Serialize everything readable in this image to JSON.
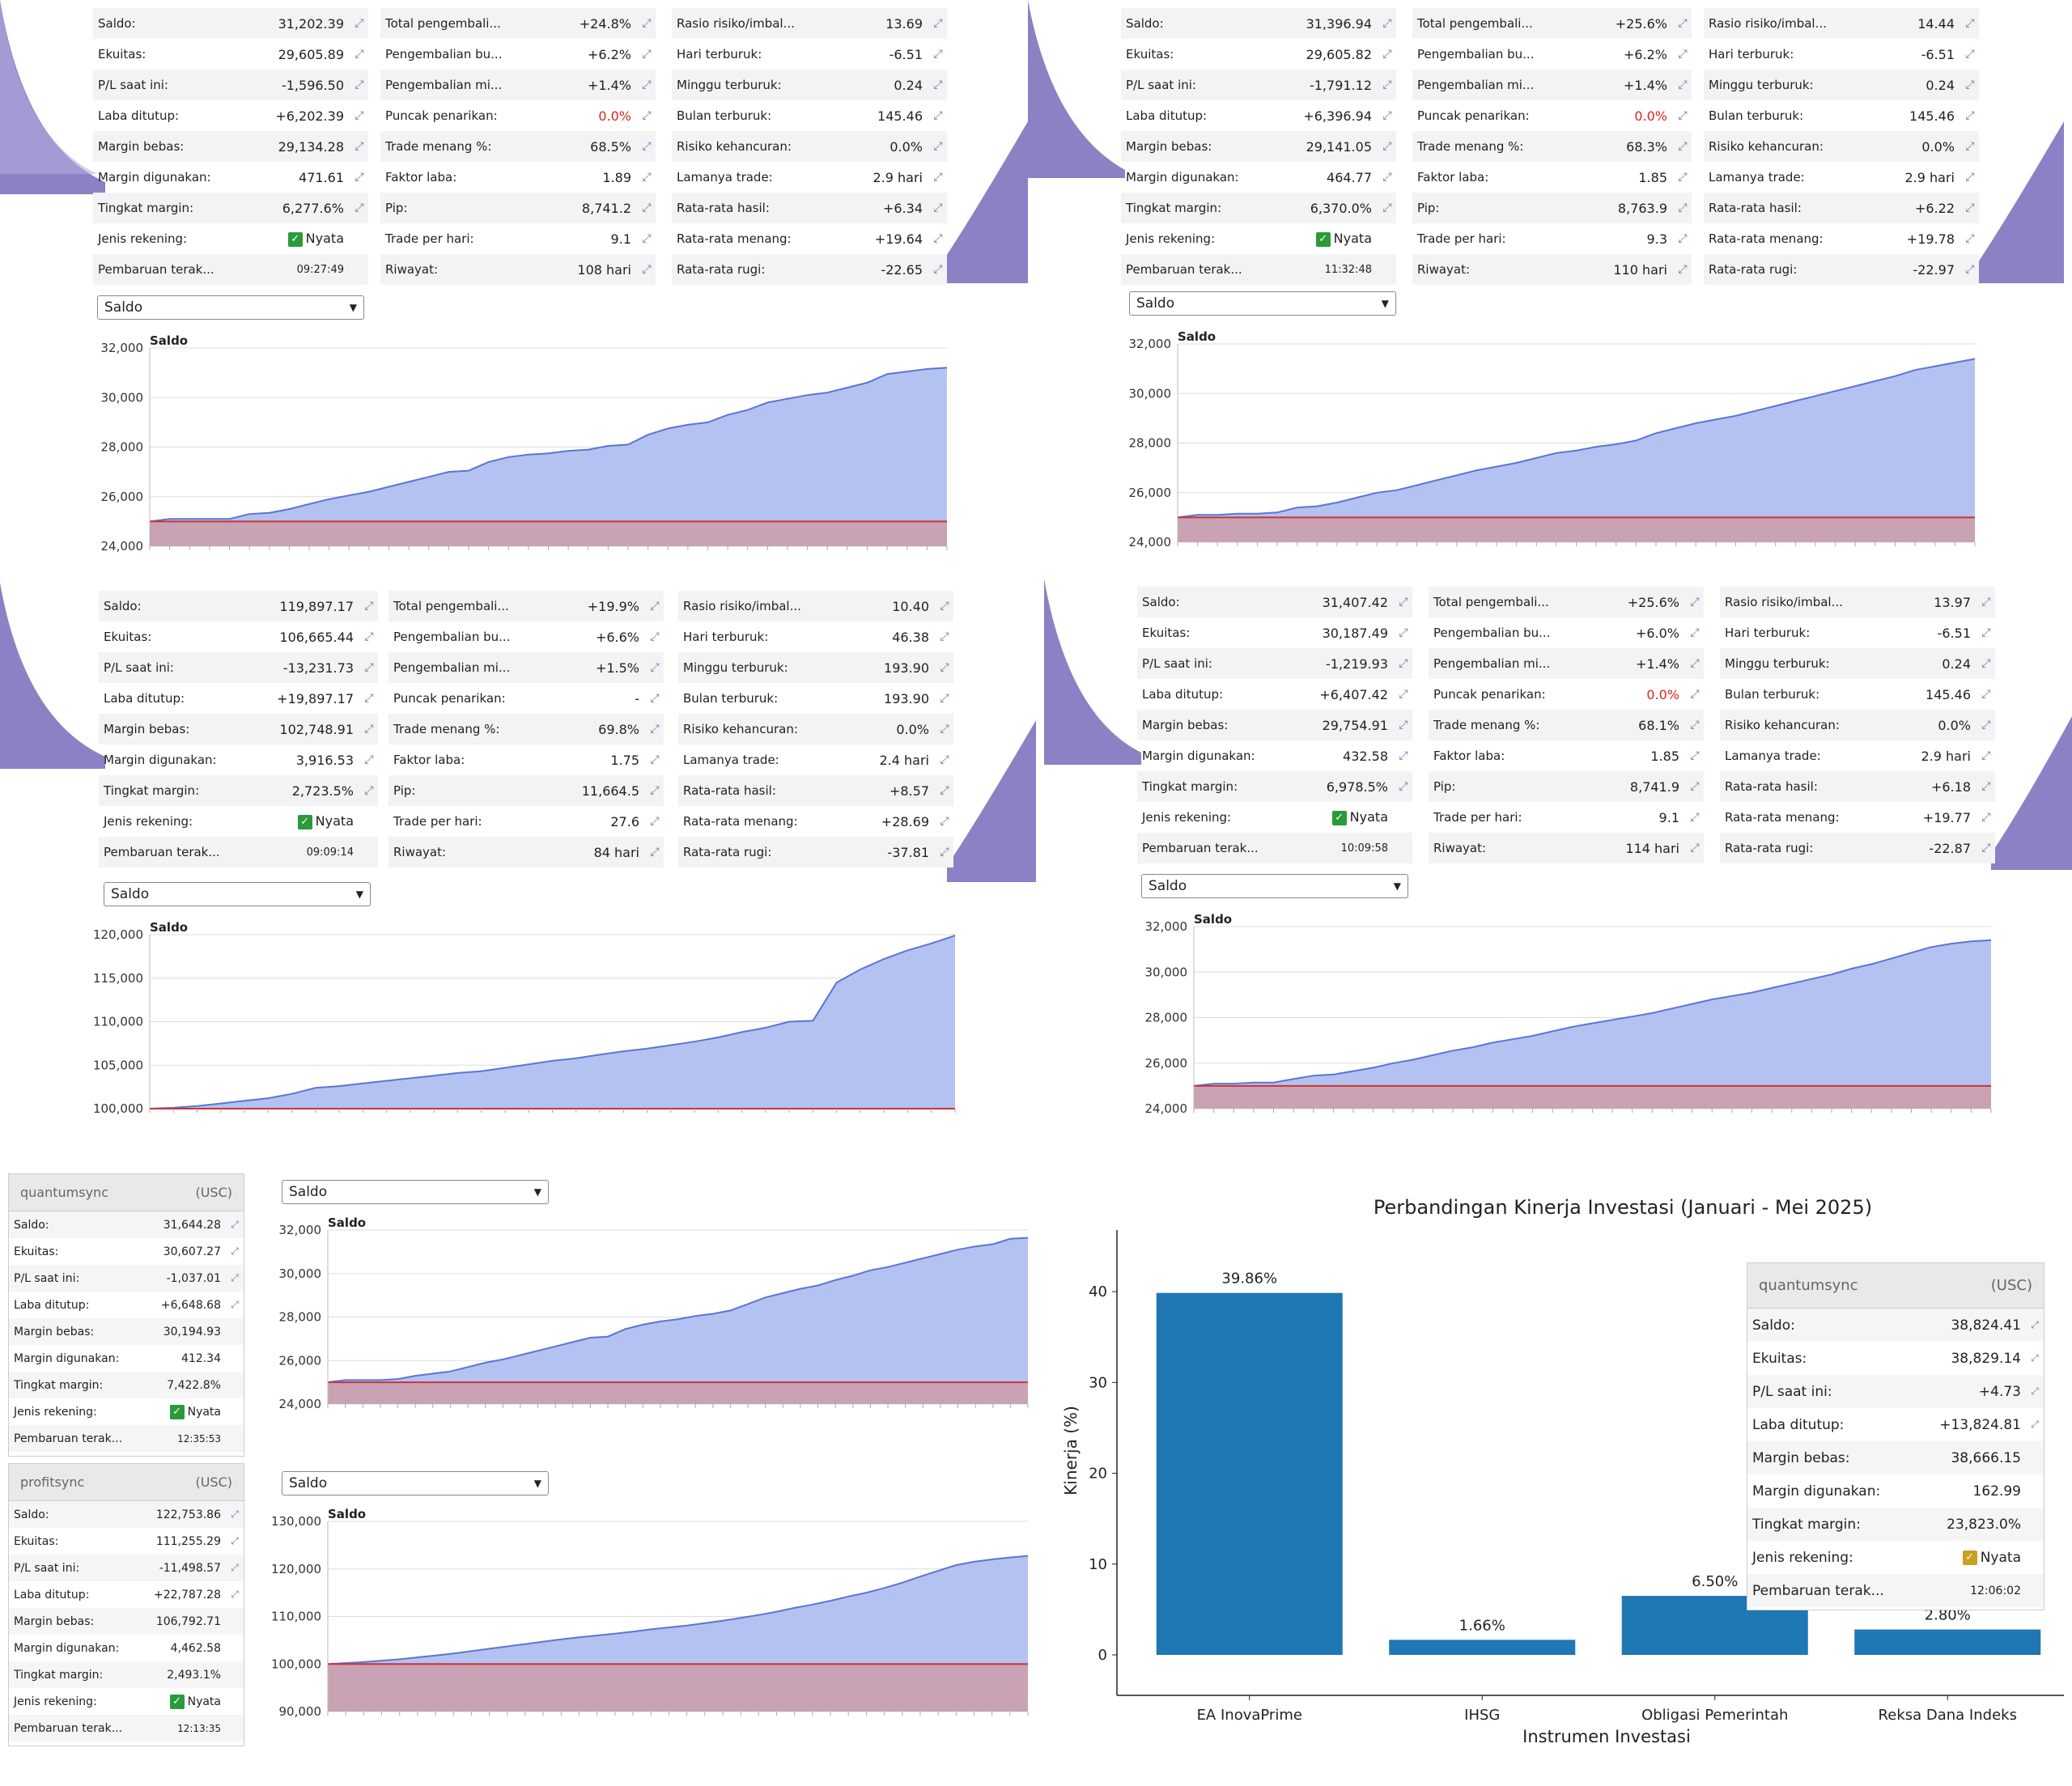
{
  "labels": {
    "balance": "Saldo:",
    "equity": "Ekuitas:",
    "pl": "P/L saat ini:",
    "closed": "Laba ditutup:",
    "free_margin": "Margin bebas:",
    "used_margin": "Margin digunakan:",
    "margin_level": "Tingkat margin:",
    "account_type": "Jenis rekening:",
    "updated": "Pembaruan terak...",
    "total_return": "Total pengembali...",
    "monthly_return": "Pengembalian bu...",
    "weekly_return": "Pengembalian mi...",
    "peak_drawdown": "Puncak penarikan:",
    "win_pct": "Trade menang %:",
    "profit_factor": "Faktor laba:",
    "pips": "Pip:",
    "trades_per_day": "Trade per hari:",
    "history": "Riwayat:",
    "risk_ratio": "Rasio risiko/imbal...",
    "worst_day": "Hari terburuk:",
    "worst_week": "Minggu terburuk:",
    "worst_month": "Bulan terburuk:",
    "ruin_risk": "Risiko kehancuran:",
    "trade_length": "Lamanya trade:",
    "avg_result": "Rata-rata hasil:",
    "avg_win": "Rata-rata menang:",
    "avg_loss": "Rata-rata rugi:",
    "real": "Nyata",
    "select": "Saldo",
    "chart_title": "Saldo"
  },
  "panels": [
    {
      "col1": [
        "31,202.39",
        "29,605.89",
        "-1,596.50",
        "+6,202.39",
        "29,134.28",
        "471.61",
        "6,277.6%",
        "Nyata",
        "09:27:49"
      ],
      "col2": [
        "+24.8%",
        "+6.2%",
        "+1.4%",
        "0.0%",
        "68.5%",
        "1.89",
        "8,741.2",
        "9.1",
        "108 hari"
      ],
      "col3": [
        "13.69",
        "-6.51",
        "0.24",
        "145.46",
        "0.0%",
        "2.9 hari",
        "+6.34",
        "+19.64",
        "-22.65"
      ]
    },
    {
      "col1": [
        "31,396.94",
        "29,605.82",
        "-1,791.12",
        "+6,396.94",
        "29,141.05",
        "464.77",
        "6,370.0%",
        "Nyata",
        "11:32:48"
      ],
      "col2": [
        "+25.6%",
        "+6.2%",
        "+1.4%",
        "0.0%",
        "68.3%",
        "1.85",
        "8,763.9",
        "9.3",
        "110 hari"
      ],
      "col3": [
        "14.44",
        "-6.51",
        "0.24",
        "145.46",
        "0.0%",
        "2.9 hari",
        "+6.22",
        "+19.78",
        "-22.97"
      ]
    },
    {
      "col1": [
        "119,897.17",
        "106,665.44",
        "-13,231.73",
        "+19,897.17",
        "102,748.91",
        "3,916.53",
        "2,723.5%",
        "Nyata",
        "09:09:14"
      ],
      "col2": [
        "+19.9%",
        "+6.6%",
        "+1.5%",
        "-",
        "69.8%",
        "1.75",
        "11,664.5",
        "27.6",
        "84 hari"
      ],
      "col3": [
        "10.40",
        "46.38",
        "193.90",
        "193.90",
        "0.0%",
        "2.4 hari",
        "+8.57",
        "+28.69",
        "-37.81"
      ]
    },
    {
      "col1": [
        "31,407.42",
        "30,187.49",
        "-1,219.93",
        "+6,407.42",
        "29,754.91",
        "432.58",
        "6,978.5%",
        "Nyata",
        "10:09:58"
      ],
      "col2": [
        "+25.6%",
        "+6.0%",
        "+1.4%",
        "0.0%",
        "68.1%",
        "1.85",
        "8,741.9",
        "9.1",
        "114 hari"
      ],
      "col3": [
        "13.97",
        "-6.51",
        "0.24",
        "145.46",
        "0.0%",
        "2.9 hari",
        "+6.18",
        "+19.77",
        "-22.87"
      ]
    }
  ],
  "cards": [
    {
      "name": "quantumsync",
      "currency": "(USC)",
      "values": [
        "31,644.28",
        "30,607.27",
        "-1,037.01",
        "+6,648.68",
        "30,194.93",
        "412.34",
        "7,422.8%",
        "Nyata",
        "12:35:53"
      ]
    },
    {
      "name": "profitsync",
      "currency": "(USC)",
      "values": [
        "122,753.86",
        "111,255.29",
        "-11,498.57",
        "+22,787.28",
        "106,792.71",
        "4,462.58",
        "2,493.1%",
        "Nyata",
        "12:13:35"
      ]
    },
    {
      "name": "quantumsync",
      "currency": "(USC)",
      "values": [
        "38,824.41",
        "38,829.14",
        "+4.73",
        "+13,824.81",
        "38,666.15",
        "162.99",
        "23,823.0%",
        "Nyata",
        "12:06:02"
      ]
    }
  ],
  "colors": {
    "accent": "#7b6fb8",
    "area": "#aebff0",
    "line": "#5e7ad8",
    "red": "#c44",
    "bar": "#1f77b4"
  },
  "chart_data": [
    {
      "type": "area",
      "title": "Saldo",
      "ylim": [
        24000,
        32000
      ],
      "yticks": [
        "24,000",
        "26,000",
        "28,000",
        "30,000",
        "32,000"
      ],
      "baseline": 25000,
      "values": [
        25000,
        25100,
        25100,
        25100,
        25100,
        25300,
        25350,
        25500,
        25700,
        25900,
        26050,
        26200,
        26400,
        26600,
        26800,
        27000,
        27050,
        27400,
        27600,
        27700,
        27750,
        27850,
        27900,
        28050,
        28100,
        28500,
        28750,
        28900,
        29000,
        29300,
        29500,
        29800,
        29950,
        30100,
        30200,
        30400,
        30600,
        30950,
        31050,
        31150,
        31202
      ]
    },
    {
      "type": "area",
      "title": "Saldo",
      "ylim": [
        24000,
        32000
      ],
      "yticks": [
        "24,000",
        "26,000",
        "28,000",
        "30,000",
        "32,000"
      ],
      "baseline": 25000,
      "values": [
        25000,
        25100,
        25100,
        25150,
        25150,
        25200,
        25400,
        25450,
        25600,
        25800,
        26000,
        26100,
        26300,
        26500,
        26700,
        26900,
        27050,
        27200,
        27400,
        27600,
        27700,
        27850,
        27950,
        28100,
        28400,
        28600,
        28800,
        28950,
        29100,
        29300,
        29500,
        29700,
        29900,
        30100,
        30300,
        30500,
        30700,
        30950,
        31100,
        31250,
        31397
      ]
    },
    {
      "type": "area",
      "title": "Saldo",
      "ylim": [
        100000,
        120000
      ],
      "yticks": [
        "100,000",
        "105,000",
        "110,000",
        "115,000",
        "120,000"
      ],
      "baseline": 100000,
      "values": [
        100000,
        100100,
        100300,
        100600,
        100900,
        101200,
        101700,
        102400,
        102600,
        102900,
        103200,
        103500,
        103800,
        104100,
        104300,
        104700,
        105100,
        105500,
        105800,
        106200,
        106600,
        106900,
        107300,
        107700,
        108200,
        108800,
        109300,
        110000,
        110100,
        114500,
        116000,
        117200,
        118200,
        119000,
        119897
      ]
    },
    {
      "type": "area",
      "title": "Saldo",
      "ylim": [
        24000,
        32000
      ],
      "yticks": [
        "24,000",
        "26,000",
        "28,000",
        "30,000",
        "32,000"
      ],
      "baseline": 25000,
      "values": [
        25000,
        25100,
        25100,
        25150,
        25150,
        25300,
        25450,
        25500,
        25650,
        25800,
        26000,
        26150,
        26350,
        26550,
        26700,
        26900,
        27050,
        27200,
        27400,
        27600,
        27750,
        27900,
        28050,
        28200,
        28400,
        28600,
        28800,
        28950,
        29100,
        29300,
        29500,
        29700,
        29900,
        30150,
        30350,
        30600,
        30850,
        31100,
        31250,
        31350,
        31407
      ]
    },
    {
      "type": "area",
      "title": "Saldo",
      "ylim": [
        24000,
        32000
      ],
      "yticks": [
        "24,000",
        "26,000",
        "28,000",
        "30,000",
        "32,000"
      ],
      "baseline": 25000,
      "values": [
        25000,
        25100,
        25100,
        25100,
        25150,
        25300,
        25400,
        25500,
        25700,
        25900,
        26050,
        26250,
        26450,
        26650,
        26850,
        27050,
        27100,
        27450,
        27650,
        27800,
        27900,
        28050,
        28150,
        28300,
        28600,
        28900,
        29100,
        29300,
        29450,
        29700,
        29900,
        30150,
        30300,
        30500,
        30700,
        30900,
        31100,
        31250,
        31350,
        31600,
        31644
      ]
    },
    {
      "type": "area",
      "title": "Saldo",
      "ylim": [
        90000,
        130000
      ],
      "yticks": [
        "90,000",
        "100,000",
        "110,000",
        "120,000",
        "130,000"
      ],
      "baseline": 100000,
      "values": [
        100000,
        100200,
        100400,
        100700,
        101000,
        101400,
        101800,
        102200,
        102700,
        103200,
        103700,
        104200,
        104700,
        105200,
        105600,
        106000,
        106400,
        106800,
        107300,
        107700,
        108100,
        108600,
        109100,
        109700,
        110300,
        111000,
        111800,
        112500,
        113300,
        114200,
        115000,
        116000,
        117100,
        118400,
        119600,
        120800,
        121500,
        122000,
        122400,
        122754
      ]
    },
    {
      "type": "bar",
      "title": "Perbandingan Kinerja Investasi (Januari - Mei 2025)",
      "xlabel": "Instrumen Investasi",
      "ylabel": "Kinerja (%)",
      "categories": [
        "EA InovaPrime",
        "IHSG",
        "Obligasi Pemerintah",
        "Reksa Dana Indeks"
      ],
      "values": [
        39.86,
        1.66,
        6.5,
        2.8
      ],
      "data_labels": [
        "39.86%",
        "1.66%",
        "6.50%",
        "2.80%"
      ],
      "ylim": [
        0,
        45
      ],
      "yticks": [
        "0",
        "10",
        "20",
        "30",
        "40"
      ]
    }
  ]
}
